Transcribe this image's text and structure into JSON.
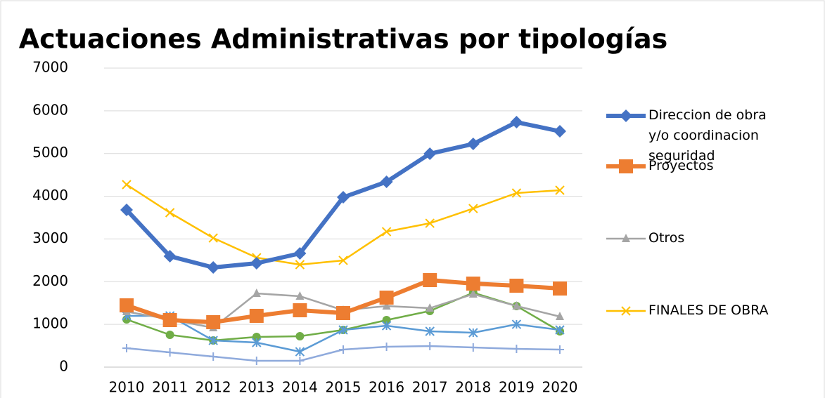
{
  "chart_data": {
    "type": "line",
    "title": "Actuaciones Administrativas por tipologías",
    "categories": [
      "2010",
      "2011",
      "2012",
      "2013",
      "2014",
      "2015",
      "2016",
      "2017",
      "2018",
      "2019",
      "2020"
    ],
    "ylim": [
      0,
      7000
    ],
    "yticks": [
      0,
      1000,
      2000,
      3000,
      4000,
      5000,
      6000,
      7000
    ],
    "grid": true,
    "legend": "right",
    "series": [
      {
        "name": "Direccion de obra y/o coordinacion seguridad",
        "color": "#4472c4",
        "marker": "diamond",
        "values": [
          3680,
          2596,
          2333,
          2432,
          2662,
          3976,
          4338,
          4995,
          5225,
          5734,
          5521
        ]
      },
      {
        "name": "Proyectos",
        "color": "#ed7d31",
        "marker": "square",
        "values": [
          1446,
          1101,
          1052,
          1200,
          1331,
          1265,
          1627,
          2037,
          1955,
          1906,
          1840
        ]
      },
      {
        "name": "Otros",
        "color": "#a5a5a5",
        "marker": "triangle",
        "values": [
          1298,
          1117,
          920,
          1725,
          1660,
          1331,
          1430,
          1380,
          1709,
          1430,
          1183
        ]
      },
      {
        "name": "FINALES DE OBRA",
        "color": "#ffc000",
        "marker": "x",
        "values": [
          4272,
          3615,
          3023,
          2563,
          2399,
          2498,
          3171,
          3368,
          3713,
          4075,
          4141
        ]
      },
      {
        "color": "#5b9bd5",
        "marker": "asterisk",
        "values": [
          1200,
          1200,
          624,
          575,
          361,
          871,
          969,
          838,
          805,
          1002,
          871
        ]
      },
      {
        "color": "#70ad47",
        "marker": "circle",
        "values": [
          1117,
          756,
          624,
          707,
          723,
          871,
          1101,
          1314,
          1742,
          1430,
          838
        ]
      },
      {
        "color": "#8faadc",
        "marker": "plus",
        "values": [
          444,
          345,
          246,
          148,
          148,
          411,
          477,
          493,
          460,
          427,
          411
        ]
      }
    ]
  }
}
